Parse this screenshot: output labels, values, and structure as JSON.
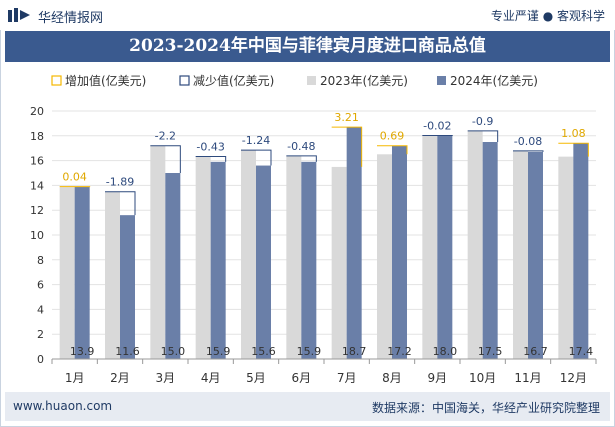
{
  "header": {
    "site_name": "华经情报网",
    "tagline": "专业严谨 ● 客观科学"
  },
  "footer": {
    "url": "www.huaon.com",
    "source": "数据来源：中国海关，华经产业研究院整理"
  },
  "colors": {
    "bar_2023": "#d9d9d9",
    "bar_2024": "#6a7fa8",
    "increase": "#f5b800",
    "decrease": "#2e4a7d",
    "title_bg": "#3a5a8f"
  },
  "chart_data": {
    "type": "bar",
    "title": "2023-2024年中国与菲律宾月度进口商品总值",
    "categories": [
      "1月",
      "2月",
      "3月",
      "4月",
      "5月",
      "6月",
      "7月",
      "8月",
      "9月",
      "10月",
      "11月",
      "12月"
    ],
    "series": [
      {
        "name": "2023年(亿美元)",
        "values": [
          13.86,
          13.49,
          17.2,
          16.33,
          16.84,
          16.38,
          15.49,
          16.51,
          18.02,
          18.4,
          16.78,
          16.32
        ]
      },
      {
        "name": "2024年(亿美元)",
        "values": [
          13.9,
          11.6,
          15.0,
          15.9,
          15.6,
          15.9,
          18.7,
          17.2,
          18.0,
          17.5,
          16.7,
          17.4
        ]
      }
    ],
    "value_labels": [
      "13.9",
      "11.6",
      "15.0",
      "15.9",
      "15.6",
      "15.9",
      "18.7",
      "17.2",
      "18.0",
      "17.5",
      "16.7",
      "17.4"
    ],
    "change_labels": [
      "0.04",
      "-1.89",
      "-2.2",
      "-0.43",
      "-1.24",
      "-0.48",
      "3.21",
      "0.69",
      "-0.02",
      "-0.9",
      "-0.08",
      "1.08"
    ],
    "legend": [
      "增加值(亿美元)",
      "减少值(亿美元)",
      "2023年(亿美元)",
      "2024年(亿美元)"
    ],
    "ylim": [
      0,
      20
    ],
    "yticks": [
      "0",
      "2",
      "4",
      "6",
      "8",
      "10",
      "12",
      "14",
      "16",
      "18",
      "20"
    ],
    "xlabel": "",
    "ylabel": ""
  }
}
